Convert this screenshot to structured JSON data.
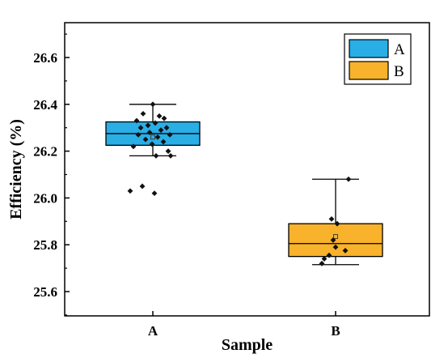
{
  "chart_data": {
    "type": "box",
    "xlabel": "Sample",
    "ylabel": "Efficiency (%)",
    "ylim": [
      25.5,
      26.75
    ],
    "yticks": [
      25.6,
      25.8,
      26.0,
      26.2,
      26.4,
      26.6
    ],
    "ytick_labels": [
      "25.6",
      "25.8",
      "26.0",
      "26.2",
      "26.4",
      "26.6"
    ],
    "categories": [
      "A",
      "B"
    ],
    "legend_position": "top-right",
    "series": [
      {
        "name": "A",
        "color": "#2aaee6",
        "whisker_low": 26.18,
        "q1": 26.225,
        "median": 26.275,
        "q3": 26.325,
        "whisker_high": 26.4,
        "mean": 26.26,
        "points": [
          26.4,
          26.36,
          26.35,
          26.34,
          26.33,
          26.32,
          26.31,
          26.3,
          26.3,
          26.29,
          26.28,
          26.27,
          26.27,
          26.26,
          26.25,
          26.24,
          26.23,
          26.22,
          26.2,
          26.18,
          26.18,
          26.05,
          26.03,
          26.02
        ]
      },
      {
        "name": "B",
        "color": "#f8b22b",
        "whisker_low": 25.715,
        "q1": 25.75,
        "median": 25.805,
        "q3": 25.89,
        "whisker_high": 26.08,
        "mean": 25.835,
        "points": [
          26.08,
          25.91,
          25.89,
          25.82,
          25.79,
          25.775,
          25.755,
          25.74,
          25.72
        ]
      }
    ]
  }
}
